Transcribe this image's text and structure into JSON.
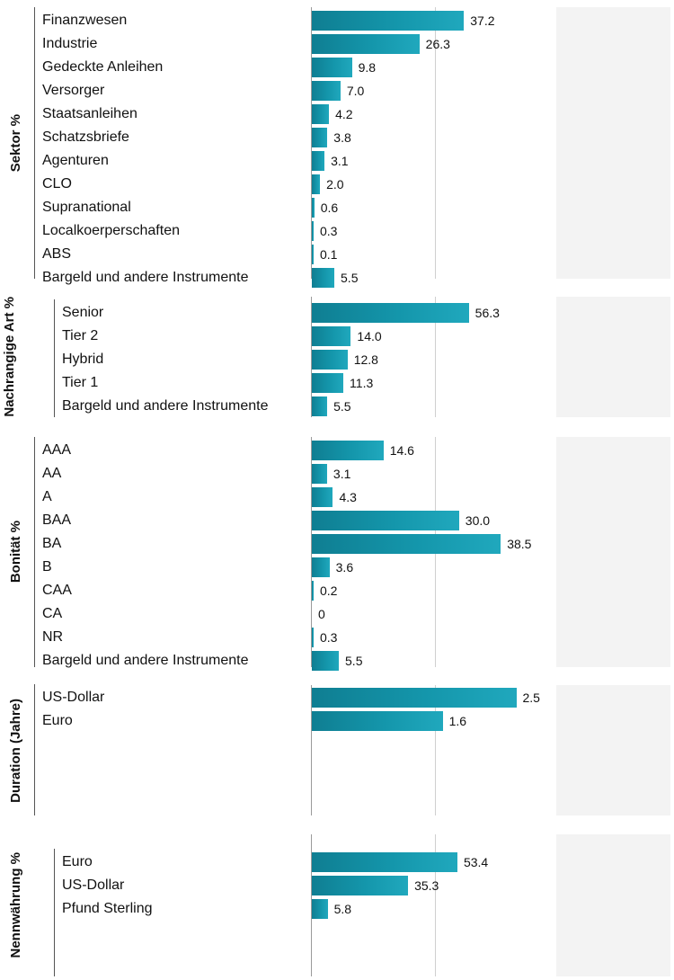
{
  "chart_data": [
    {
      "type": "bar",
      "orientation": "horizontal",
      "title": "Sektor %",
      "categories": [
        "Finanzwesen",
        "Industrie",
        "Gedeckte Anleihen",
        "Versorger",
        "Staatsanleihen",
        "Schatzsbriefe",
        "Agenturen",
        "CLO",
        "Supranational",
        "Localkoerperschaften",
        "ABS",
        "Bargeld und andere Instrumente"
      ],
      "values": [
        37.2,
        26.3,
        9.8,
        7.0,
        4.2,
        3.8,
        3.1,
        2.0,
        0.6,
        0.3,
        0.1,
        5.5
      ],
      "labels": [
        "37.2",
        "26.3",
        "9.8",
        "7.0",
        "4.2",
        "3.8",
        "3.1",
        "2.0",
        "0.6",
        "0.3",
        "0.1",
        "5.5"
      ],
      "xlim": [
        0,
        60
      ],
      "grid": true
    },
    {
      "type": "bar",
      "orientation": "horizontal",
      "title": "Nachrangige Art %",
      "categories": [
        "Senior",
        "Tier 2",
        "Hybrid",
        "Tier 1",
        "Bargeld und andere Instrumente"
      ],
      "values": [
        56.3,
        14.0,
        12.8,
        11.3,
        5.5
      ],
      "labels": [
        "56.3",
        "14.0",
        "12.8",
        "11.3",
        "5.5"
      ],
      "xlim": [
        0,
        88
      ],
      "grid": true
    },
    {
      "type": "bar",
      "orientation": "horizontal",
      "title": "Bonität %",
      "categories": [
        "AAA",
        "AA",
        "A",
        "BAA",
        "BA",
        "B",
        "CAA",
        "CA",
        "NR",
        "Bargeld und andere Instrumente"
      ],
      "values": [
        14.6,
        3.1,
        4.3,
        30.0,
        38.5,
        3.6,
        0.2,
        0,
        0.3,
        5.5
      ],
      "labels": [
        "14.6",
        "3.1",
        "4.3",
        "30.0",
        "38.5",
        "3.6",
        "0.2",
        "0",
        "0.3",
        "5.5"
      ],
      "xlim": [
        0,
        50
      ],
      "grid": true
    },
    {
      "type": "bar",
      "orientation": "horizontal",
      "title": "Duration (Jahre)",
      "categories": [
        "US-Dollar",
        "Euro"
      ],
      "values": [
        2.5,
        1.6
      ],
      "labels": [
        "2.5",
        "1.6"
      ],
      "xlim": [
        0,
        3
      ],
      "grid": true
    },
    {
      "type": "bar",
      "orientation": "horizontal",
      "title": "Nennwährung %",
      "categories": [
        "Euro",
        "US-Dollar",
        "Pfund Sterling"
      ],
      "values": [
        53.4,
        35.3,
        5.8
      ],
      "labels": [
        "53.4",
        "35.3",
        "5.8"
      ],
      "xlim": [
        0,
        90
      ],
      "grid": true
    }
  ],
  "colors": {
    "bar_dark": "#0f7e92",
    "bar_light": "#20a8bd",
    "plot_shade": "#f3f3f3",
    "grid": "#cfcfcf"
  }
}
